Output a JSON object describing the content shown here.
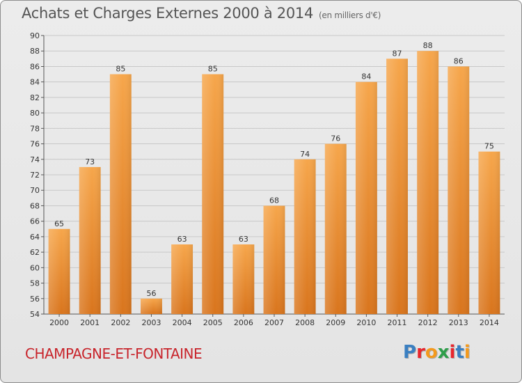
{
  "header": {
    "title": "Achats et Charges Externes 2000 à 2014",
    "unit": "(en milliers d'€)"
  },
  "footer": {
    "commune": "CHAMPAGNE-ET-FONTAINE",
    "brand": "Proxiti"
  },
  "colors": {
    "bar_light": "#f6a64b",
    "bar_dark": "#d9751d",
    "commune_text": "#c8242b",
    "brand_letters": [
      "#3a7fc1",
      "#e8262d",
      "#f39a1e",
      "#2e9e4a",
      "#e8262d",
      "#3a7fc1",
      "#f39a1e"
    ]
  },
  "chart_data": {
    "type": "bar",
    "title": "Achats et Charges Externes 2000 à 2014",
    "subtitle": "(en milliers d'€)",
    "categories": [
      "2000",
      "2001",
      "2002",
      "2003",
      "2004",
      "2005",
      "2006",
      "2007",
      "2008",
      "2009",
      "2010",
      "2011",
      "2012",
      "2013",
      "2014"
    ],
    "values": [
      65,
      73,
      85,
      56,
      63,
      85,
      63,
      68,
      74,
      76,
      84,
      87,
      88,
      86,
      75
    ],
    "ylim": [
      54,
      90
    ],
    "yticks": [
      54,
      56,
      58,
      60,
      62,
      64,
      66,
      68,
      70,
      72,
      74,
      76,
      78,
      80,
      82,
      84,
      86,
      88,
      90
    ],
    "grid": true,
    "legend": "none"
  }
}
